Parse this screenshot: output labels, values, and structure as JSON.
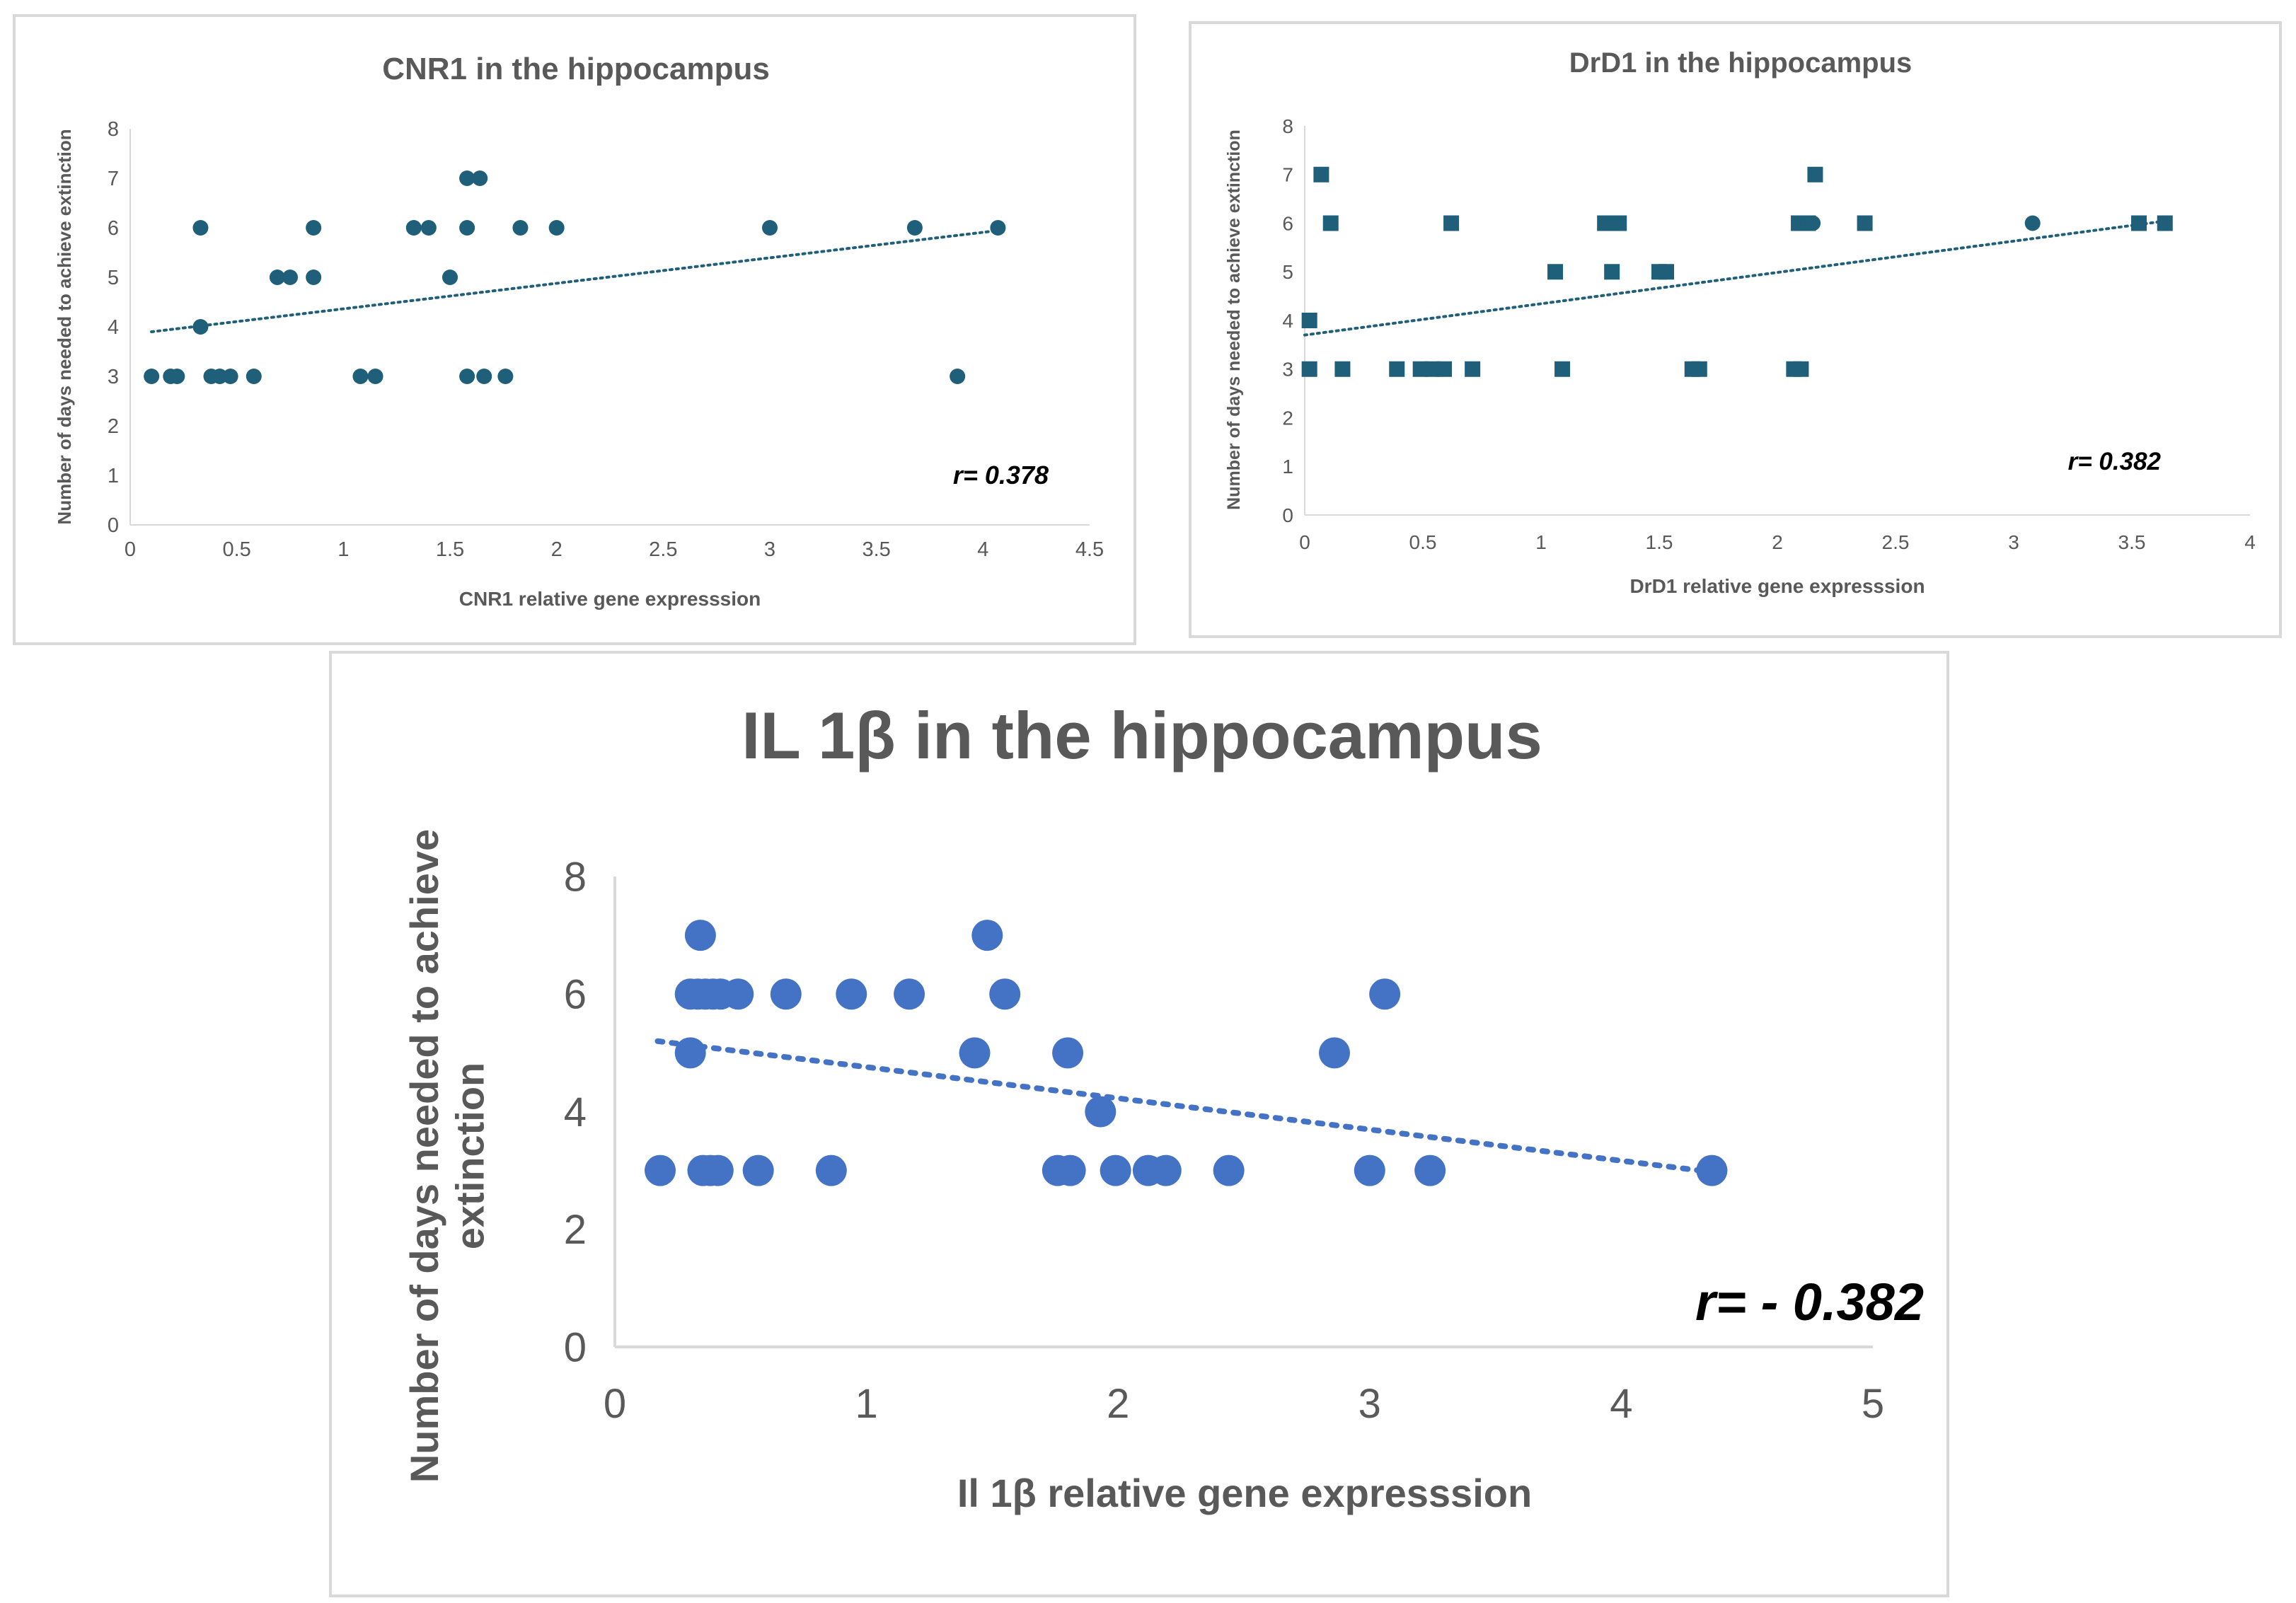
{
  "chart_data": [
    {
      "type": "scatter",
      "title": "CNR1 in the hippocampus",
      "xlabel": "CNR1 relative gene expresssion",
      "ylabel": "Number of days needed to achieve extinction",
      "xlim": [
        0,
        4.5
      ],
      "ylim": [
        0,
        8
      ],
      "x_ticks": [
        "0",
        "0.5",
        "1",
        "1.5",
        "2",
        "2.5",
        "3",
        "3.5",
        "4",
        "4.5"
      ],
      "y_ticks": [
        "0",
        "1",
        "2",
        "3",
        "4",
        "5",
        "6",
        "7",
        "8"
      ],
      "marker": "circle",
      "color": "#1f5f7a",
      "annotation": "r= 0.378",
      "trendline": {
        "x": [
          0.1,
          4.08
        ],
        "y": [
          3.9,
          5.95
        ]
      },
      "points": [
        {
          "x": 0.1,
          "y": 3
        },
        {
          "x": 0.19,
          "y": 3
        },
        {
          "x": 0.22,
          "y": 3
        },
        {
          "x": 0.33,
          "y": 6
        },
        {
          "x": 0.33,
          "y": 4
        },
        {
          "x": 0.38,
          "y": 3
        },
        {
          "x": 0.42,
          "y": 3
        },
        {
          "x": 0.47,
          "y": 3
        },
        {
          "x": 0.58,
          "y": 3
        },
        {
          "x": 0.69,
          "y": 5
        },
        {
          "x": 0.75,
          "y": 5
        },
        {
          "x": 0.86,
          "y": 5
        },
        {
          "x": 0.86,
          "y": 6
        },
        {
          "x": 1.08,
          "y": 3
        },
        {
          "x": 1.15,
          "y": 3
        },
        {
          "x": 1.33,
          "y": 6
        },
        {
          "x": 1.4,
          "y": 6
        },
        {
          "x": 1.5,
          "y": 5
        },
        {
          "x": 1.58,
          "y": 7
        },
        {
          "x": 1.64,
          "y": 7
        },
        {
          "x": 1.58,
          "y": 6
        },
        {
          "x": 1.58,
          "y": 3
        },
        {
          "x": 1.66,
          "y": 3
        },
        {
          "x": 1.76,
          "y": 3
        },
        {
          "x": 1.83,
          "y": 6
        },
        {
          "x": 2.0,
          "y": 6
        },
        {
          "x": 3.0,
          "y": 6
        },
        {
          "x": 3.68,
          "y": 6
        },
        {
          "x": 3.88,
          "y": 3
        },
        {
          "x": 4.07,
          "y": 6
        }
      ]
    },
    {
      "type": "scatter",
      "title": "DrD1 in the hippocampus",
      "xlabel": "DrD1 relative gene expresssion",
      "ylabel": "Number of days needed to achieve extinction",
      "xlim": [
        0,
        4
      ],
      "ylim": [
        0,
        8
      ],
      "x_ticks": [
        "0",
        "0.5",
        "1",
        "1.5",
        "2",
        "2.5",
        "3",
        "3.5",
        "4"
      ],
      "y_ticks": [
        "0",
        "1",
        "2",
        "3",
        "4",
        "5",
        "6",
        "7",
        "8"
      ],
      "marker": "square",
      "color": "#1f5f7a",
      "annotation": "r= 0.382",
      "trendline": {
        "x": [
          0.0,
          3.65
        ],
        "y": [
          3.7,
          6.05
        ]
      },
      "points": [
        {
          "x": 0.02,
          "y": 3,
          "m": "square"
        },
        {
          "x": 0.02,
          "y": 4,
          "m": "square"
        },
        {
          "x": 0.07,
          "y": 7,
          "m": "square"
        },
        {
          "x": 0.11,
          "y": 6,
          "m": "square"
        },
        {
          "x": 0.16,
          "y": 3,
          "m": "square"
        },
        {
          "x": 0.39,
          "y": 3,
          "m": "square"
        },
        {
          "x": 0.49,
          "y": 3,
          "m": "square"
        },
        {
          "x": 0.54,
          "y": 3,
          "m": "square"
        },
        {
          "x": 0.59,
          "y": 3,
          "m": "square"
        },
        {
          "x": 0.62,
          "y": 6,
          "m": "square"
        },
        {
          "x": 0.71,
          "y": 3,
          "m": "square"
        },
        {
          "x": 1.06,
          "y": 5,
          "m": "square"
        },
        {
          "x": 1.09,
          "y": 3,
          "m": "square"
        },
        {
          "x": 1.27,
          "y": 6,
          "m": "square"
        },
        {
          "x": 1.33,
          "y": 6,
          "m": "square"
        },
        {
          "x": 1.3,
          "y": 5,
          "m": "square"
        },
        {
          "x": 1.5,
          "y": 5,
          "m": "square"
        },
        {
          "x": 1.53,
          "y": 5,
          "m": "square"
        },
        {
          "x": 1.64,
          "y": 3,
          "m": "square"
        },
        {
          "x": 1.67,
          "y": 3,
          "m": "square"
        },
        {
          "x": 2.07,
          "y": 3,
          "m": "square"
        },
        {
          "x": 2.1,
          "y": 3,
          "m": "square"
        },
        {
          "x": 2.09,
          "y": 6,
          "m": "square"
        },
        {
          "x": 2.13,
          "y": 6,
          "m": "square"
        },
        {
          "x": 2.15,
          "y": 6,
          "m": "circle"
        },
        {
          "x": 2.16,
          "y": 7,
          "m": "square"
        },
        {
          "x": 2.37,
          "y": 6,
          "m": "square"
        },
        {
          "x": 3.08,
          "y": 6,
          "m": "circle"
        },
        {
          "x": 3.53,
          "y": 6,
          "m": "square"
        },
        {
          "x": 3.64,
          "y": 6,
          "m": "square"
        }
      ]
    },
    {
      "type": "scatter",
      "title": "IL 1β in the hippocampus",
      "xlabel": "Il 1β relative gene expresssion",
      "ylabel": "Number of days needed to achieve extinction",
      "xlim": [
        0,
        5
      ],
      "ylim": [
        0,
        8
      ],
      "x_ticks": [
        "0",
        "1",
        "2",
        "3",
        "4",
        "5"
      ],
      "y_ticks": [
        "0",
        "2",
        "4",
        "6",
        "8"
      ],
      "marker": "circle",
      "color": "#4472c4",
      "annotation": "r= - 0.382",
      "trendline": {
        "x": [
          0.17,
          4.35
        ],
        "y": [
          5.2,
          2.98
        ]
      },
      "points": [
        {
          "x": 0.18,
          "y": 3
        },
        {
          "x": 0.35,
          "y": 3
        },
        {
          "x": 0.38,
          "y": 3
        },
        {
          "x": 0.41,
          "y": 3
        },
        {
          "x": 0.57,
          "y": 3
        },
        {
          "x": 0.86,
          "y": 3
        },
        {
          "x": 0.3,
          "y": 5
        },
        {
          "x": 0.3,
          "y": 6
        },
        {
          "x": 0.33,
          "y": 6
        },
        {
          "x": 0.36,
          "y": 6
        },
        {
          "x": 0.39,
          "y": 6
        },
        {
          "x": 0.42,
          "y": 6
        },
        {
          "x": 0.49,
          "y": 6
        },
        {
          "x": 0.68,
          "y": 6
        },
        {
          "x": 0.94,
          "y": 6
        },
        {
          "x": 1.17,
          "y": 6
        },
        {
          "x": 0.34,
          "y": 7
        },
        {
          "x": 1.48,
          "y": 7
        },
        {
          "x": 1.43,
          "y": 5
        },
        {
          "x": 1.55,
          "y": 6
        },
        {
          "x": 1.8,
          "y": 5
        },
        {
          "x": 1.76,
          "y": 3
        },
        {
          "x": 1.81,
          "y": 3
        },
        {
          "x": 1.93,
          "y": 4
        },
        {
          "x": 1.99,
          "y": 3
        },
        {
          "x": 2.12,
          "y": 3
        },
        {
          "x": 2.19,
          "y": 3
        },
        {
          "x": 2.44,
          "y": 3
        },
        {
          "x": 2.86,
          "y": 5
        },
        {
          "x": 3.0,
          "y": 3
        },
        {
          "x": 3.06,
          "y": 6
        },
        {
          "x": 3.24,
          "y": 3
        },
        {
          "x": 4.36,
          "y": 3
        }
      ]
    }
  ]
}
